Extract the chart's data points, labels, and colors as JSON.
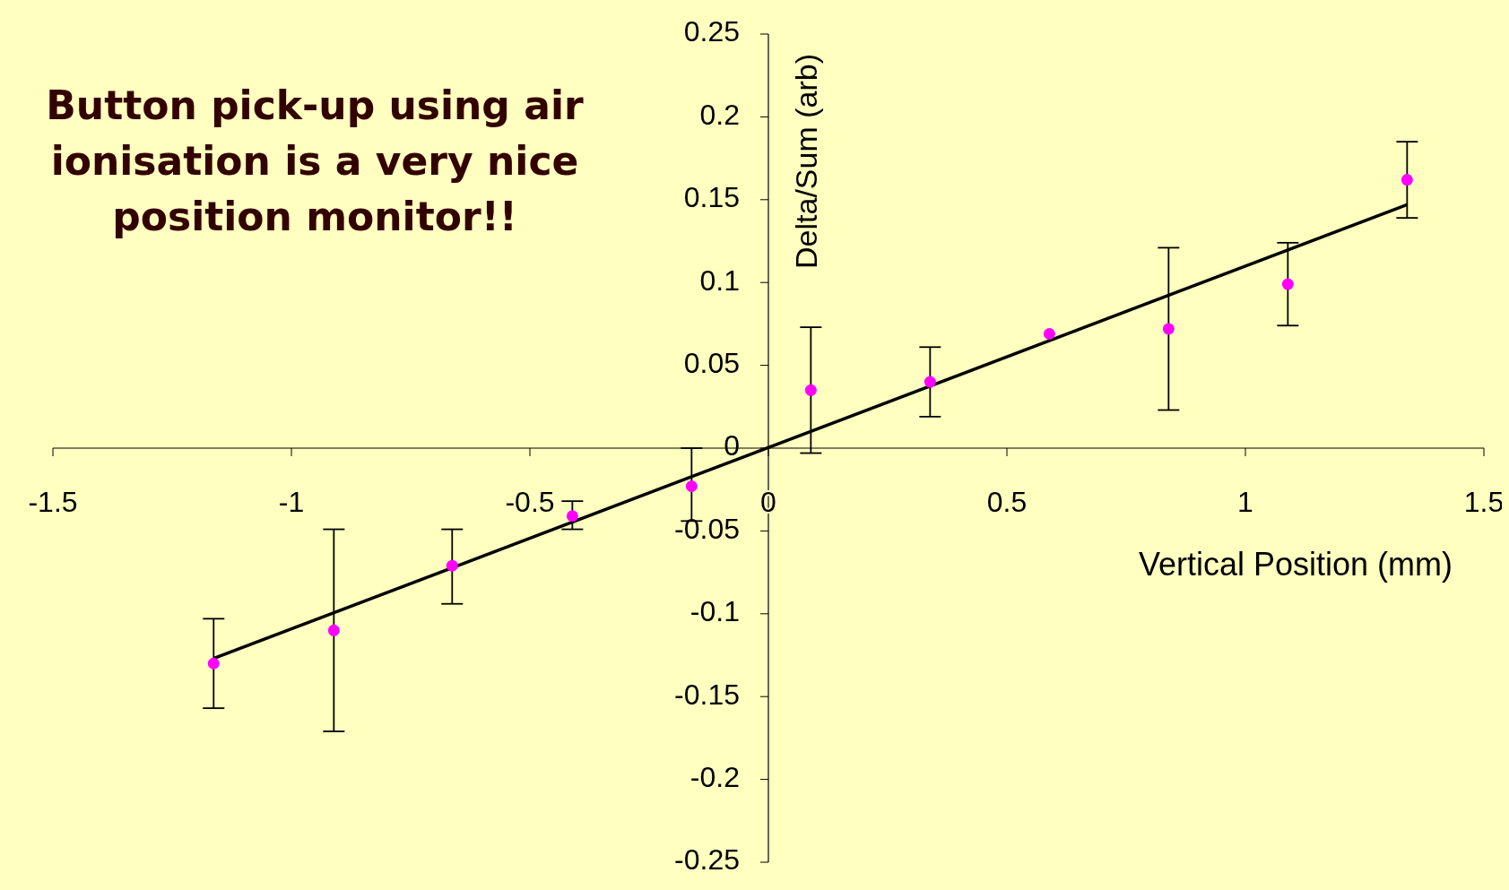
{
  "chart_data": {
    "type": "scatter",
    "title": "Button pick-up using air\nionisation is a very nice\nposition monitor!!",
    "xlabel": "Vertical Position (mm)",
    "ylabel": "Delta/Sum (arb)",
    "xlim": [
      -1.5,
      1.5
    ],
    "xticks": [
      -1.5,
      -1,
      -0.5,
      0,
      0.5,
      1,
      1.5
    ],
    "ylim": [
      -0.25,
      0.25
    ],
    "yticks": [
      -0.25,
      -0.2,
      -0.15,
      -0.1,
      -0.05,
      0,
      0.05,
      0.1,
      0.15,
      0.2,
      0.25
    ],
    "series": [
      {
        "type": "scatter",
        "marker": "circle",
        "color": "#ff00ff",
        "x": [
          -1.163,
          -0.911,
          -0.663,
          -0.411,
          -0.161,
          0.089,
          0.339,
          0.589,
          0.839,
          1.089,
          1.339
        ],
        "values": [
          -0.13,
          -0.11,
          -0.071,
          -0.041,
          -0.023,
          0.035,
          0.04,
          0.069,
          0.072,
          0.099,
          0.162
        ],
        "errors": [
          [
            -0.157,
            -0.103
          ],
          [
            -0.171,
            -0.049
          ],
          [
            -0.094,
            -0.049
          ],
          [
            -0.049,
            -0.032
          ],
          [
            -0.044,
            0.0
          ],
          [
            -0.003,
            0.073
          ],
          [
            0.019,
            0.061
          ],
          null,
          [
            0.023,
            0.121
          ],
          [
            0.074,
            0.124
          ],
          [
            0.139,
            0.185
          ]
        ]
      },
      {
        "type": "line",
        "color": "#000000",
        "line_style": "solid",
        "x": [
          -1.163,
          1.339
        ],
        "values": [
          -0.127,
          0.147
        ]
      }
    ]
  }
}
